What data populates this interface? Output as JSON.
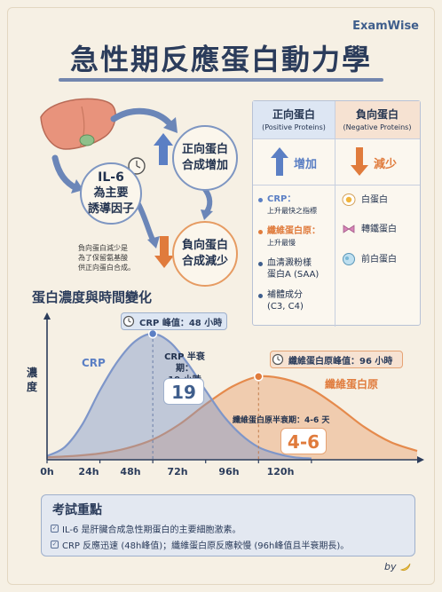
{
  "brand": "ExamWise",
  "title": "急性期反應蛋白動力學",
  "mechanism": {
    "center_circle": {
      "line1": "IL-6",
      "line2": "為主要",
      "line3": "誘導因子"
    },
    "positive_circle": {
      "line1": "正向蛋白",
      "line2": "合成增加"
    },
    "negative_circle": {
      "line1": "負向蛋白",
      "line2": "合成減少"
    },
    "note": [
      "負向蛋白減少是",
      "為了保留氨基酸",
      "供正向蛋白合成。"
    ]
  },
  "protein_table": {
    "positive": {
      "title": "正向蛋白",
      "subtitle": "(Positive Proteins)",
      "trend": "增加",
      "items": [
        {
          "name": "CRP：",
          "detail": "上升最快之指標",
          "color": "#5b7fc4"
        },
        {
          "name": "纖維蛋白原：",
          "detail": "上升最慢",
          "color": "#e07b3c"
        },
        {
          "name": "血清澱粉樣",
          "detail": "蛋白A (SAA)",
          "color": "#3f5e8c"
        },
        {
          "name": "補體成分",
          "detail": "(C3, C4)",
          "color": "#3f5e8c"
        }
      ]
    },
    "negative": {
      "title": "負向蛋白",
      "subtitle": "(Negative Proteins)",
      "trend": "減少",
      "items": [
        "白蛋白",
        "轉鐵蛋白",
        "前白蛋白"
      ]
    }
  },
  "chart_title": "蛋白濃度與時間變化",
  "chart_data": {
    "type": "area",
    "title": "蛋白濃度與時間變化",
    "xlabel": "",
    "ylabel": "濃度",
    "xlim": [
      0,
      168
    ],
    "x_ticks": [
      "0h",
      "24h",
      "48h",
      "72h",
      "96h",
      "120h"
    ],
    "x_tick_values": [
      0,
      24,
      48,
      72,
      96,
      120
    ],
    "series": [
      {
        "name": "CRP",
        "color": "#7e96c9",
        "x": [
          0,
          8,
          16,
          24,
          32,
          40,
          48,
          56,
          64,
          72,
          80,
          88,
          96,
          104,
          112,
          120
        ],
        "y": [
          0.03,
          0.1,
          0.28,
          0.55,
          0.78,
          0.94,
          1.0,
          0.93,
          0.76,
          0.55,
          0.35,
          0.2,
          0.1,
          0.05,
          0.02,
          0.01
        ]
      },
      {
        "name": "纖維蛋白原",
        "color": "#e58a4c",
        "x": [
          0,
          12,
          24,
          36,
          48,
          60,
          72,
          84,
          96,
          108,
          120,
          132,
          144,
          156,
          168
        ],
        "y": [
          0.02,
          0.03,
          0.05,
          0.09,
          0.16,
          0.28,
          0.44,
          0.58,
          0.66,
          0.64,
          0.56,
          0.42,
          0.26,
          0.14,
          0.07
        ]
      }
    ],
    "annotations": {
      "crp_peak": "CRP 峰值：48 小時",
      "crp_half_life_label": [
        "CRP 半衰期：",
        "19 小時"
      ],
      "crp_half_life_value": "19",
      "fib_peak": "纖維蛋白原峰值：96 小時",
      "fib_half_life_label": "纖維蛋白原半衰期：4-6 天",
      "fib_half_life_value": "4-6"
    },
    "grid": false,
    "legend": "inline"
  },
  "exam": {
    "title": "考試重點",
    "points": [
      "IL-6 是肝臟合成急性期蛋白的主要細胞激素。",
      "CRP 反應迅速 (48h峰值)；纖維蛋白原反應較慢 (96h峰值且半衰期長)。"
    ]
  },
  "signature": "by"
}
